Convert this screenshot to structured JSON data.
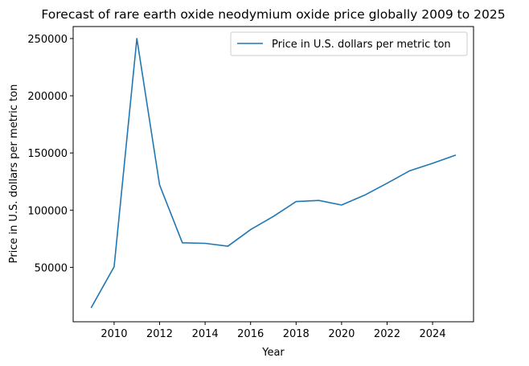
{
  "chart_data": {
    "type": "line",
    "title": "Forecast of rare earth oxide neodymium oxide price globally 2009 to 2025",
    "xlabel": "Year",
    "ylabel": "Price in U.S. dollars per metric ton",
    "x": [
      2009,
      2010,
      2011,
      2012,
      2013,
      2014,
      2015,
      2016,
      2017,
      2018,
      2019,
      2020,
      2021,
      2022,
      2023,
      2024,
      2025
    ],
    "series": [
      {
        "name": "Price in U.S. dollars per metric ton",
        "color": "#1f77b4",
        "values": [
          15000,
          50500,
          250000,
          122000,
          71500,
          71000,
          68500,
          83000,
          94500,
          107500,
          108500,
          104500,
          113000,
          123500,
          134500,
          141000,
          148000
        ]
      }
    ],
    "xlim": [
      2008.2,
      2025.8
    ],
    "ylim": [
      2450,
      260500
    ],
    "xticks": [
      "2010",
      "2012",
      "2014",
      "2016",
      "2018",
      "2020",
      "2022",
      "2024"
    ],
    "yticks": [
      "50000",
      "100000",
      "150000",
      "200000",
      "250000"
    ],
    "grid": false,
    "legend": "top-right"
  }
}
